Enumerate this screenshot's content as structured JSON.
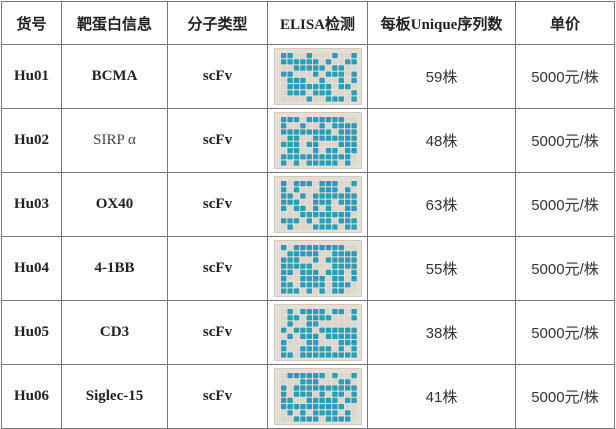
{
  "table": {
    "headers": [
      "货号",
      "靶蛋白信息",
      "分子类型",
      "ELISA检测",
      "每板Unique序列数",
      "单价"
    ],
    "rows": [
      {
        "id": "Hu01",
        "target": "BCMA",
        "target_weight": "bold",
        "type": "scFv",
        "plate_icon": "elisa-plate-image",
        "count": "59株",
        "price": "5000元/株"
      },
      {
        "id": "Hu02",
        "target": "SIRP α",
        "target_weight": "light",
        "type": "scFv",
        "plate_icon": "elisa-plate-image",
        "count": "48株",
        "price": "5000元/株"
      },
      {
        "id": "Hu03",
        "target": "OX40",
        "target_weight": "bold",
        "type": "scFv",
        "plate_icon": "elisa-plate-image",
        "count": "63株",
        "price": "5000元/株"
      },
      {
        "id": "Hu04",
        "target": "4-1BB",
        "target_weight": "bold",
        "type": "scFv",
        "plate_icon": "elisa-plate-image",
        "count": "55株",
        "price": "5000元/株"
      },
      {
        "id": "Hu05",
        "target": "CD3",
        "target_weight": "bold",
        "type": "scFv",
        "plate_icon": "elisa-plate-image",
        "count": "38株",
        "price": "5000元/株"
      },
      {
        "id": "Hu06",
        "target": "Siglec-15",
        "target_weight": "bold",
        "type": "scFv",
        "plate_icon": "elisa-plate-image",
        "count": "41株",
        "price": "5000元/株"
      }
    ]
  },
  "colors": {
    "well_positive": "#2a9db8",
    "well_negative": "#dcd6cc",
    "grid_border": "#777777"
  }
}
